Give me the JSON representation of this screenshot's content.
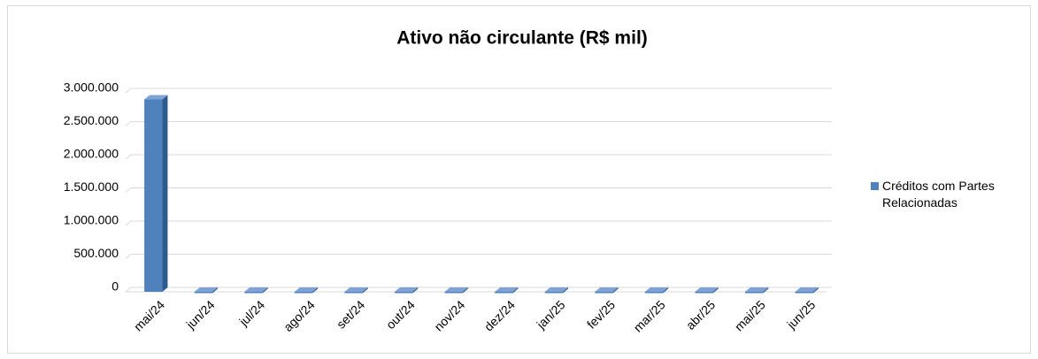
{
  "chart_data": {
    "type": "bar3d",
    "title": "Ativo não circulante (R$ mil)",
    "categories": [
      "mai/24",
      "jun/24",
      "jul/24",
      "ago/24",
      "set/24",
      "out/24",
      "nov/24",
      "dez/24",
      "jan/25",
      "fev/25",
      "mar/25",
      "abr/25",
      "mai/25",
      "jun/25"
    ],
    "series": [
      {
        "name": "Créditos com Partes Relacionadas",
        "color": "#4f81bd",
        "values": [
          2900000,
          0,
          0,
          0,
          0,
          0,
          0,
          0,
          0,
          0,
          0,
          0,
          0,
          0
        ]
      }
    ],
    "ylim": [
      0,
      3000000
    ],
    "yticks": [
      0,
      {
        "value": 500000,
        "label": "500.000"
      },
      {
        "value": 1000000,
        "label": "1.000.000"
      },
      {
        "value": 1500000,
        "label": "1.500.000"
      },
      {
        "value": 2000000,
        "label": "2.000.000"
      },
      {
        "value": 2500000,
        "label": "2.500.000"
      },
      {
        "value": 3000000,
        "label": "3.000.000"
      }
    ],
    "grid": true,
    "legend": "right"
  }
}
